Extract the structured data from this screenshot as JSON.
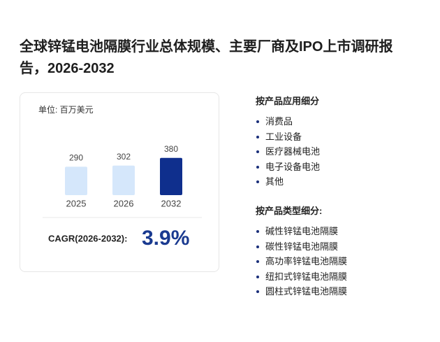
{
  "header": {
    "title": "全球锌锰电池隔膜行业总体规模、主要厂商及IPO上市调研报告，2026-2032"
  },
  "chart_data": {
    "type": "bar",
    "unit": "单位: 百万美元",
    "categories": [
      "2025",
      "2026",
      "2032"
    ],
    "values": [
      290,
      302,
      380
    ],
    "colors": [
      "#d5e7fb",
      "#d5e7fb",
      "#0f2f8d"
    ],
    "cagr_label": "CAGR(2026-2032):",
    "cagr_value": "3.9%"
  },
  "lists": [
    {
      "heading": "按产品应用细分",
      "items": [
        "消费品",
        "工业设备",
        "医疗器械电池",
        "电子设备电池",
        "其他"
      ]
    },
    {
      "heading": "按产品类型细分:",
      "items": [
        "碱性锌锰电池隔膜",
        "碳性锌锰电池隔膜",
        "高功率锌锰电池隔膜",
        "纽扣式锌锰电池隔膜",
        "圆柱式锌锰电池隔膜"
      ]
    }
  ]
}
